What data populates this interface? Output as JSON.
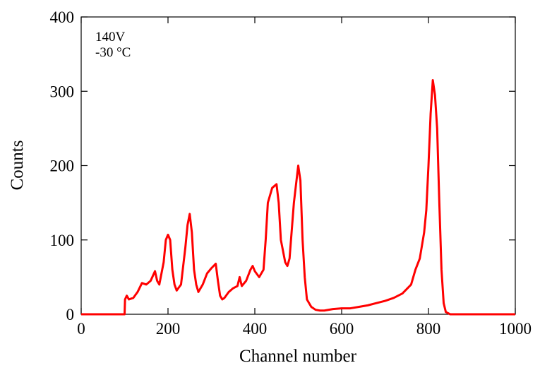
{
  "chart_data": {
    "type": "line",
    "xlabel": "Channel number",
    "ylabel": "Counts",
    "annotations": [
      "140V",
      "-30 °C"
    ],
    "color": "#ff0000",
    "x": [
      0,
      100,
      101,
      105,
      110,
      120,
      130,
      140,
      150,
      160,
      170,
      175,
      180,
      190,
      195,
      200,
      205,
      210,
      215,
      220,
      230,
      240,
      245,
      250,
      255,
      260,
      265,
      270,
      280,
      290,
      300,
      310,
      315,
      320,
      325,
      330,
      340,
      350,
      360,
      365,
      370,
      380,
      390,
      395,
      400,
      410,
      420,
      425,
      430,
      440,
      450,
      455,
      460,
      470,
      475,
      480,
      490,
      500,
      505,
      510,
      515,
      520,
      530,
      540,
      550,
      560,
      580,
      600,
      620,
      640,
      660,
      680,
      700,
      720,
      740,
      760,
      770,
      780,
      790,
      795,
      800,
      805,
      810,
      815,
      820,
      825,
      830,
      835,
      840,
      850,
      1000
    ],
    "values": [
      0,
      0,
      20,
      25,
      20,
      22,
      30,
      42,
      40,
      45,
      58,
      45,
      40,
      70,
      100,
      107,
      100,
      60,
      40,
      32,
      40,
      90,
      120,
      135,
      110,
      60,
      40,
      30,
      40,
      55,
      62,
      68,
      45,
      25,
      20,
      22,
      30,
      35,
      38,
      50,
      38,
      45,
      60,
      65,
      58,
      50,
      60,
      100,
      150,
      170,
      175,
      150,
      100,
      70,
      65,
      75,
      150,
      200,
      180,
      100,
      50,
      20,
      10,
      6,
      5,
      5,
      7,
      8,
      8,
      10,
      12,
      15,
      18,
      22,
      28,
      40,
      60,
      75,
      110,
      140,
      200,
      270,
      315,
      295,
      250,
      150,
      60,
      15,
      3,
      0,
      0
    ],
    "xlim": [
      0,
      1000
    ],
    "xticks": [
      0,
      200,
      400,
      600,
      800,
      1000
    ],
    "ylim": [
      0,
      400
    ],
    "yticks": [
      0,
      100,
      200,
      300,
      400
    ]
  }
}
